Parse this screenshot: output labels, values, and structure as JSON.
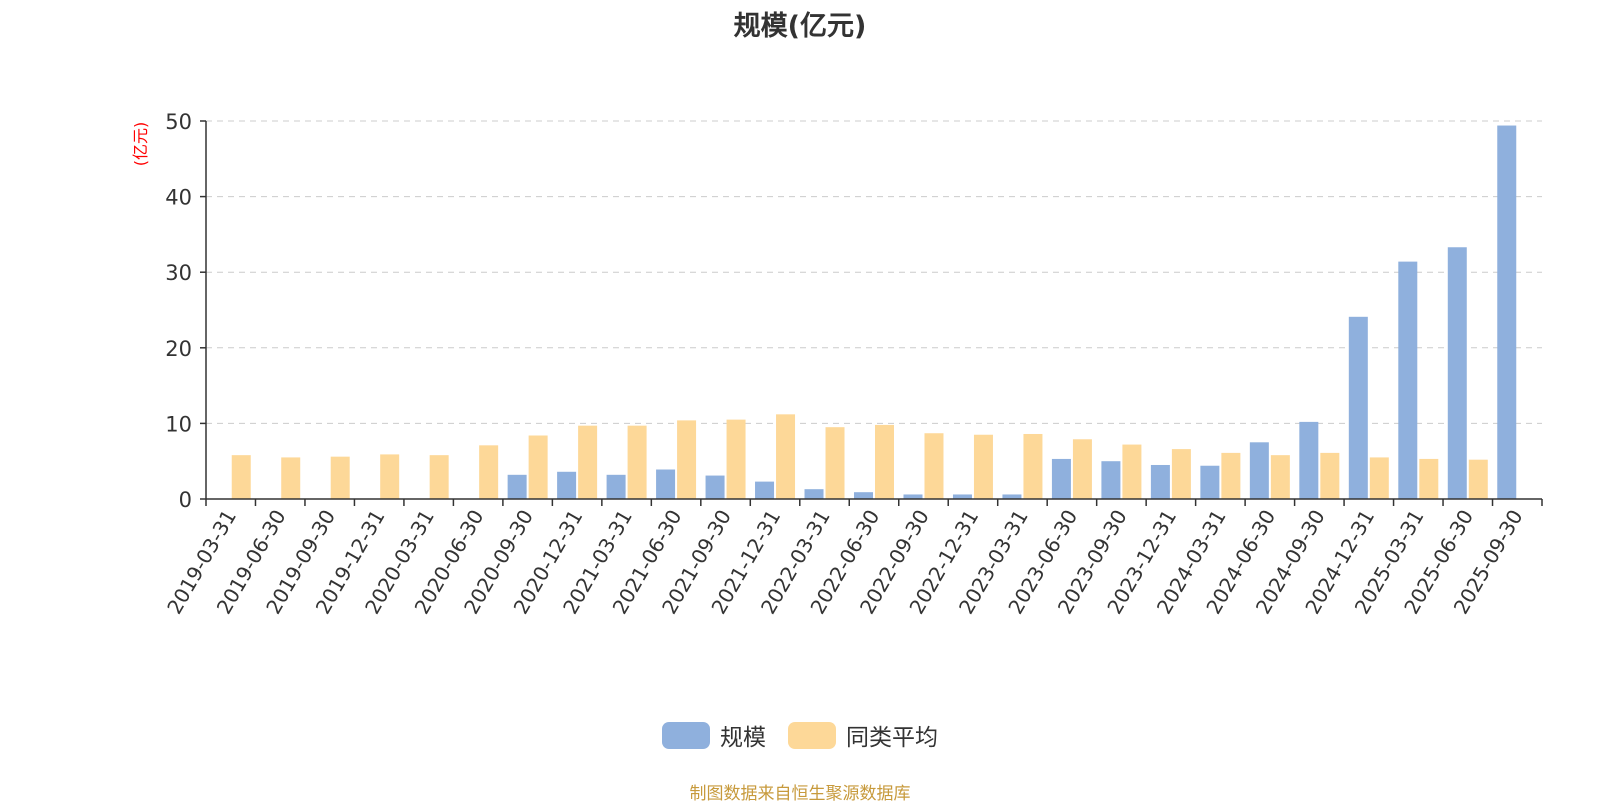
{
  "chart_data": {
    "type": "bar",
    "title": "规模(亿元)",
    "ylabel": "(亿元)",
    "xlabel": "",
    "ylim": [
      0,
      50
    ],
    "yticks": [
      0,
      10,
      20,
      30,
      40,
      50
    ],
    "grid": true,
    "legend_position": "bottom",
    "categories": [
      "2019-03-31",
      "2019-06-30",
      "2019-09-30",
      "2019-12-31",
      "2020-03-31",
      "2020-06-30",
      "2020-09-30",
      "2020-12-31",
      "2021-03-31",
      "2021-06-30",
      "2021-09-30",
      "2021-12-31",
      "2022-03-31",
      "2022-06-30",
      "2022-09-30",
      "2022-12-31",
      "2023-03-31",
      "2023-06-30",
      "2023-09-30",
      "2023-12-31",
      "2024-03-31",
      "2024-06-30",
      "2024-09-30",
      "2024-12-31",
      "2025-03-31",
      "2025-06-30",
      "2025-09-30"
    ],
    "series": [
      {
        "name": "规模",
        "color": "#8fb0dd",
        "values": [
          0,
          0,
          0,
          0,
          0,
          0,
          3.2,
          3.6,
          3.2,
          3.9,
          3.1,
          2.3,
          1.3,
          0.9,
          0.6,
          0.6,
          0.6,
          5.3,
          5.0,
          4.5,
          4.4,
          7.5,
          10.2,
          24.1,
          31.4,
          33.3,
          49.4
        ]
      },
      {
        "name": "同类平均",
        "color": "#fdd898",
        "values": [
          5.8,
          5.5,
          5.6,
          5.9,
          5.8,
          7.1,
          8.4,
          9.7,
          9.7,
          10.4,
          10.5,
          11.2,
          9.5,
          9.8,
          8.7,
          8.5,
          8.6,
          7.9,
          7.2,
          6.6,
          6.1,
          5.8,
          6.1,
          5.5,
          5.3,
          5.2,
          0
        ]
      }
    ]
  },
  "colors": {
    "axis": "#333333",
    "grid": "#cccccc",
    "ylabel": "#ff0000",
    "source": "#c79a3c"
  },
  "source_note": "制图数据来自恒生聚源数据库"
}
